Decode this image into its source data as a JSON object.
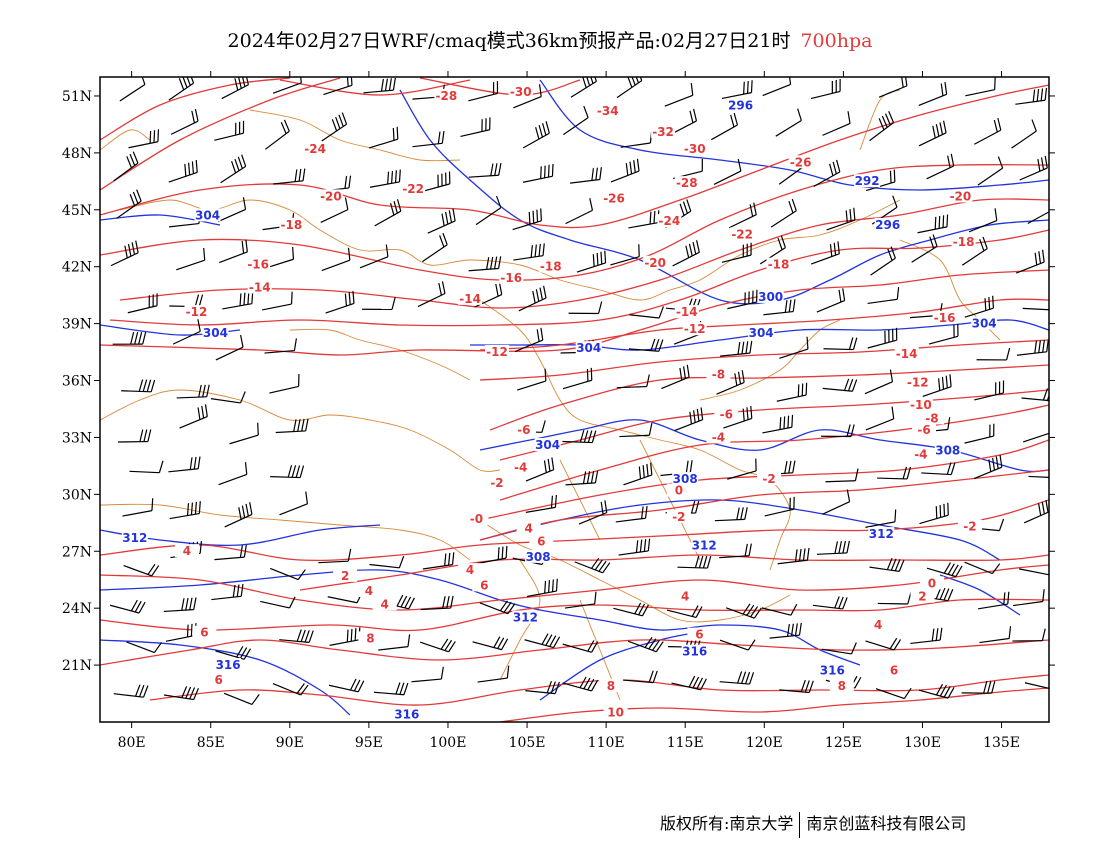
{
  "title": {
    "text": "2024年02月27日WRF/cmaq模式36km预报产品:02月27日21时",
    "level": "700hpa"
  },
  "footer": {
    "left": "版权所有:南京大学",
    "right": "南京创蓝科技有限公司"
  },
  "map_data": {
    "lon_range": [
      78,
      138
    ],
    "lat_range": [
      18,
      52
    ],
    "lat_ticks": [
      "51N",
      "48N",
      "45N",
      "42N",
      "39N",
      "36N",
      "33N",
      "30N",
      "27N",
      "24N",
      "21N"
    ],
    "lat_values": [
      51,
      48,
      45,
      42,
      39,
      36,
      33,
      30,
      27,
      24,
      21
    ],
    "lon_ticks": [
      "80E",
      "85E",
      "90E",
      "95E",
      "100E",
      "105E",
      "110E",
      "115E",
      "120E",
      "125E",
      "130E",
      "135E"
    ],
    "lon_values": [
      80,
      85,
      90,
      95,
      100,
      105,
      110,
      115,
      120,
      125,
      130,
      135
    ],
    "temperature_color": "#e23a3a",
    "height_color": "#2233dd",
    "border_color": "#d98a3a",
    "temperature_labels": [
      {
        "t": "-28",
        "lon": 99.9,
        "lat": 50.9
      },
      {
        "t": "-30",
        "lon": 104.6,
        "lat": 51.1
      },
      {
        "t": "-34",
        "lon": 110.1,
        "lat": 50.1
      },
      {
        "t": "-32",
        "lon": 113.6,
        "lat": 49.0
      },
      {
        "t": "-30",
        "lon": 115.6,
        "lat": 48.1
      },
      {
        "t": "-26",
        "lon": 122.3,
        "lat": 47.4
      },
      {
        "t": "-24",
        "lon": 91.6,
        "lat": 48.1
      },
      {
        "t": "-22",
        "lon": 97.8,
        "lat": 46.0
      },
      {
        "t": "-20",
        "lon": 92.6,
        "lat": 45.6
      },
      {
        "t": "-28",
        "lon": 115.1,
        "lat": 46.3
      },
      {
        "t": "-26",
        "lon": 110.5,
        "lat": 45.5
      },
      {
        "t": "-24",
        "lon": 114.0,
        "lat": 44.3
      },
      {
        "t": "-22",
        "lon": 118.6,
        "lat": 43.6
      },
      {
        "t": "-20",
        "lon": 132.4,
        "lat": 45.6
      },
      {
        "t": "-18",
        "lon": 90.1,
        "lat": 44.1
      },
      {
        "t": "-18",
        "lon": 132.6,
        "lat": 43.2
      },
      {
        "t": "-16",
        "lon": 88.0,
        "lat": 42.0
      },
      {
        "t": "-14",
        "lon": 88.1,
        "lat": 40.8
      },
      {
        "t": "-16",
        "lon": 104.0,
        "lat": 41.3
      },
      {
        "t": "-18",
        "lon": 106.5,
        "lat": 41.9
      },
      {
        "t": "-20",
        "lon": 113.1,
        "lat": 42.1
      },
      {
        "t": "-18",
        "lon": 120.9,
        "lat": 42.0
      },
      {
        "t": "-16",
        "lon": 131.4,
        "lat": 39.2
      },
      {
        "t": "-12",
        "lon": 84.1,
        "lat": 39.5
      },
      {
        "t": "-14",
        "lon": 101.4,
        "lat": 40.2
      },
      {
        "t": "-14",
        "lon": 115.1,
        "lat": 39.5
      },
      {
        "t": "-12",
        "lon": 115.6,
        "lat": 38.6
      },
      {
        "t": "-12",
        "lon": 103.1,
        "lat": 37.4
      },
      {
        "t": "-14",
        "lon": 129.0,
        "lat": 37.3
      },
      {
        "t": "-12",
        "lon": 129.7,
        "lat": 35.8
      },
      {
        "t": "-10",
        "lon": 129.9,
        "lat": 34.6
      },
      {
        "t": "-8",
        "lon": 117.1,
        "lat": 36.2
      },
      {
        "t": "-8",
        "lon": 130.6,
        "lat": 33.9
      },
      {
        "t": "-6",
        "lon": 117.6,
        "lat": 34.1
      },
      {
        "t": "-6",
        "lon": 130.1,
        "lat": 33.3
      },
      {
        "t": "-4",
        "lon": 117.1,
        "lat": 32.9
      },
      {
        "t": "-4",
        "lon": 129.9,
        "lat": 32.0
      },
      {
        "t": "-6",
        "lon": 104.8,
        "lat": 33.3
      },
      {
        "t": "-4",
        "lon": 104.6,
        "lat": 31.3
      },
      {
        "t": "-2",
        "lon": 103.1,
        "lat": 30.5
      },
      {
        "t": "-2",
        "lon": 120.3,
        "lat": 30.7
      },
      {
        "t": "0",
        "lon": 114.6,
        "lat": 30.1
      },
      {
        "t": "-2",
        "lon": 133.0,
        "lat": 28.2
      },
      {
        "t": "-0",
        "lon": 101.8,
        "lat": 28.6
      },
      {
        "t": "4",
        "lon": 105.1,
        "lat": 28.1
      },
      {
        "t": "6",
        "lon": 105.9,
        "lat": 27.4
      },
      {
        "t": "-2",
        "lon": 114.6,
        "lat": 28.7
      },
      {
        "t": "4",
        "lon": 83.5,
        "lat": 26.9
      },
      {
        "t": "2",
        "lon": 93.5,
        "lat": 25.6
      },
      {
        "t": "4",
        "lon": 95.0,
        "lat": 24.8
      },
      {
        "t": "4",
        "lon": 96.0,
        "lat": 24.1
      },
      {
        "t": "4",
        "lon": 101.4,
        "lat": 25.9
      },
      {
        "t": "6",
        "lon": 102.3,
        "lat": 25.1
      },
      {
        "t": "0",
        "lon": 130.6,
        "lat": 25.2
      },
      {
        "t": "2",
        "lon": 130.0,
        "lat": 24.5
      },
      {
        "t": "4",
        "lon": 115.0,
        "lat": 24.5
      },
      {
        "t": "4",
        "lon": 127.2,
        "lat": 23.0
      },
      {
        "t": "6",
        "lon": 84.6,
        "lat": 22.6
      },
      {
        "t": "8",
        "lon": 95.1,
        "lat": 22.3
      },
      {
        "t": "6",
        "lon": 115.9,
        "lat": 22.5
      },
      {
        "t": "6",
        "lon": 85.5,
        "lat": 20.1
      },
      {
        "t": "6",
        "lon": 128.2,
        "lat": 20.6
      },
      {
        "t": "8",
        "lon": 110.3,
        "lat": 19.8
      },
      {
        "t": "8",
        "lon": 124.9,
        "lat": 19.8
      },
      {
        "t": "10",
        "lon": 110.6,
        "lat": 18.4
      }
    ],
    "height_labels": [
      {
        "h": "296",
        "lon": 118.5,
        "lat": 50.4
      },
      {
        "h": "292",
        "lon": 126.5,
        "lat": 46.4
      },
      {
        "h": "304",
        "lon": 84.8,
        "lat": 44.6
      },
      {
        "h": "296",
        "lon": 127.8,
        "lat": 44.1
      },
      {
        "h": "300",
        "lon": 120.4,
        "lat": 40.3
      },
      {
        "h": "304",
        "lon": 85.3,
        "lat": 38.4
      },
      {
        "h": "304",
        "lon": 119.8,
        "lat": 38.4
      },
      {
        "h": "304",
        "lon": 133.9,
        "lat": 38.9
      },
      {
        "h": "304",
        "lon": 108.9,
        "lat": 37.6
      },
      {
        "h": "304",
        "lon": 106.3,
        "lat": 32.5
      },
      {
        "h": "308",
        "lon": 115.0,
        "lat": 30.7
      },
      {
        "h": "308",
        "lon": 131.6,
        "lat": 32.2
      },
      {
        "h": "312",
        "lon": 80.2,
        "lat": 27.6
      },
      {
        "h": "312",
        "lon": 116.2,
        "lat": 27.2
      },
      {
        "h": "312",
        "lon": 127.4,
        "lat": 27.8
      },
      {
        "h": "308",
        "lon": 105.7,
        "lat": 26.6
      },
      {
        "h": "312",
        "lon": 104.9,
        "lat": 23.4
      },
      {
        "h": "316",
        "lon": 115.6,
        "lat": 21.6
      },
      {
        "h": "316",
        "lon": 86.1,
        "lat": 20.9
      },
      {
        "h": "316",
        "lon": 124.3,
        "lat": 20.6
      },
      {
        "h": "316",
        "lon": 97.4,
        "lat": 18.3
      }
    ]
  }
}
